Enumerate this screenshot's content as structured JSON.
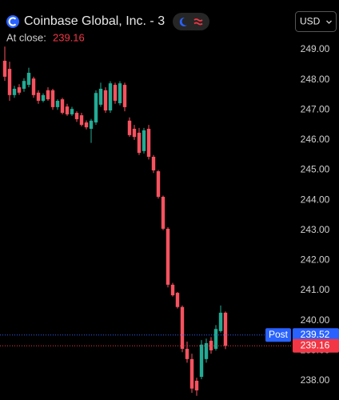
{
  "header": {
    "title": "Coinbase Global, Inc. - 3",
    "at_close_label": "At close:",
    "currency": "USD"
  },
  "chart_data": {
    "type": "candlestick",
    "up_color": "#22ab94",
    "down_color": "#f7525f",
    "open": [
      248.63,
      248.36,
      247.49,
      247.75,
      247.7,
      247.83,
      248.04,
      247.57,
      247.3,
      247.65,
      247.65,
      247.09,
      247.35,
      247.11,
      246.85,
      246.9,
      246.82,
      246.58,
      246.37,
      246.58,
      247.17,
      247.65,
      246.98,
      247.83,
      247.22,
      247.83,
      246.64,
      246.37,
      246.24,
      245.63,
      246.37,
      245.44,
      244.96,
      244.11,
      243.05,
      241.19,
      240.92,
      240.45,
      239.06,
      238.72,
      238.0,
      238.13,
      238.72,
      239.33,
      239.06,
      239.65,
      240.26
    ],
    "high": [
      249.1,
      248.6,
      247.8,
      247.85,
      248.05,
      248.4,
      248.1,
      247.65,
      247.55,
      247.75,
      247.7,
      247.35,
      247.4,
      247.2,
      247.1,
      246.95,
      246.9,
      246.65,
      246.7,
      247.65,
      247.9,
      247.75,
      247.95,
      247.9,
      247.95,
      247.9,
      246.75,
      246.5,
      246.4,
      246.4,
      246.5,
      245.5,
      245.0,
      244.15,
      243.1,
      241.25,
      240.95,
      240.5,
      239.3,
      238.9,
      238.1,
      239.35,
      239.4,
      239.45,
      239.85,
      240.5,
      240.3
    ],
    "low": [
      247.96,
      247.3,
      247.4,
      247.5,
      247.6,
      247.75,
      247.4,
      247.2,
      247.25,
      247.3,
      247.0,
      247.0,
      246.85,
      246.8,
      246.8,
      246.6,
      246.45,
      246.35,
      245.9,
      246.5,
      247.1,
      246.9,
      246.9,
      247.2,
      247.15,
      246.95,
      246.1,
      246.0,
      245.5,
      245.55,
      245.35,
      244.9,
      244.05,
      243.0,
      241.1,
      240.8,
      240.4,
      238.95,
      238.6,
      237.6,
      237.5,
      238.05,
      238.6,
      238.9,
      239.0,
      239.6,
      239.05
    ],
    "close": [
      248.1,
      247.49,
      247.7,
      247.57,
      247.96,
      248.23,
      247.49,
      247.3,
      247.49,
      247.35,
      247.09,
      247.3,
      246.9,
      246.85,
      247.03,
      246.69,
      246.5,
      246.42,
      246.64,
      247.56,
      247.7,
      246.98,
      247.88,
      247.3,
      247.88,
      247.09,
      246.16,
      246.1,
      245.57,
      246.32,
      245.44,
      244.99,
      244.11,
      243.05,
      241.19,
      240.84,
      240.45,
      239.06,
      238.72,
      237.74,
      237.68,
      239.2,
      239.25,
      239.01,
      239.72,
      240.26,
      239.16
    ],
    "ylim": [
      237.52,
      249.32
    ],
    "yticks": [
      {
        "value": 249,
        "label": "249.00"
      },
      {
        "value": 248,
        "label": "248.00"
      },
      {
        "value": 247,
        "label": "247.00"
      },
      {
        "value": 246,
        "label": "246.00"
      },
      {
        "value": 245,
        "label": "245.00"
      },
      {
        "value": 244,
        "label": "244.00"
      },
      {
        "value": 243,
        "label": "243.00"
      },
      {
        "value": 242,
        "label": "242.00"
      },
      {
        "value": 241,
        "label": "241.00"
      },
      {
        "value": 240,
        "label": "240.00"
      },
      {
        "value": 239,
        "label": "239.00"
      },
      {
        "value": 238,
        "label": "238.00"
      }
    ],
    "post_label": "Post",
    "post_price": 239.52,
    "post_color": "#2962ff",
    "close_price": 239.16,
    "close_color": "#f23645"
  }
}
